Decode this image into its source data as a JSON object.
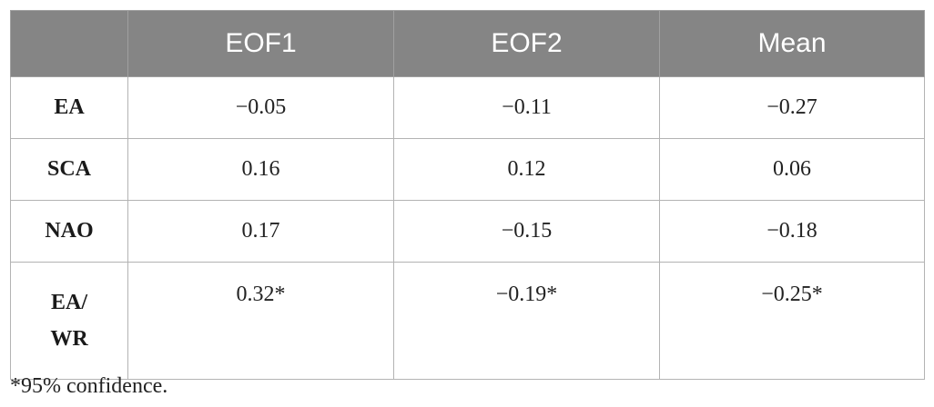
{
  "table": {
    "headers": [
      "",
      "EOF1",
      "EOF2",
      "Mean"
    ],
    "rows": [
      {
        "label": "EA",
        "values": [
          "−0.05",
          "−0.11",
          "−0.27"
        ]
      },
      {
        "label": "SCA",
        "values": [
          "0.16",
          "0.12",
          "0.06"
        ]
      },
      {
        "label": "NAO",
        "values": [
          "0.17",
          "−0.15",
          "−0.18"
        ]
      },
      {
        "label_line1": "EA/",
        "label_line2": "WR",
        "values": [
          "0.32*",
          "−0.19*",
          "−0.25*"
        ]
      }
    ]
  },
  "footnote": "*95% confidence."
}
